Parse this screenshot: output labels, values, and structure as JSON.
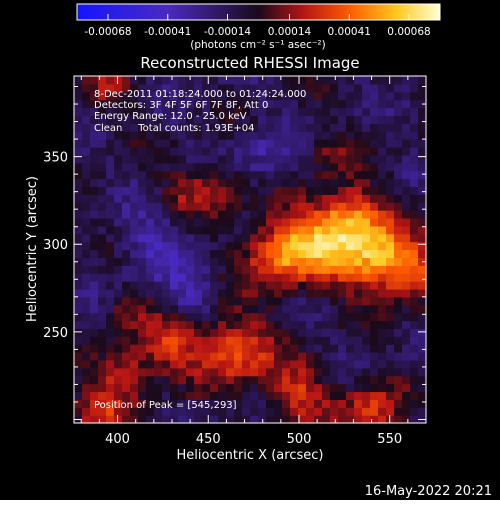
{
  "chart_data": {
    "type": "heatmap",
    "title": "Reconstructed RHESSI Image",
    "xlabel": "Heliocentric X (arcsec)",
    "ylabel": "Heliocentric Y (arcsec)",
    "xlim": [
      376,
      570
    ],
    "ylim": [
      198,
      396
    ],
    "x_ticks": [
      400,
      450,
      500,
      550
    ],
    "y_ticks": [
      250,
      300,
      350
    ],
    "colorbar": {
      "range": [
        -0.00082,
        0.00082
      ],
      "ticks": [
        "-0.00068",
        "-0.00041",
        "-0.00014",
        "0.00014",
        "0.00041",
        "0.00068"
      ],
      "unit_label": "(photons cm⁻² s⁻¹ asec⁻²)"
    },
    "annotations": [
      "8-Dec-2011 01:18:24.000 to 01:24:24.000",
      "Detectors: 3F 4F 5F 6F 7F 8F, Att 0",
      "Energy Range: 12.0 - 25.0 keV",
      "Clean     Total counts: 1.93E+04"
    ],
    "peak_label": "Position of Peak = [545,293]",
    "footer_timestamp": "16-May-2022 20:21",
    "features": [
      {
        "x": 545,
        "y": 293,
        "sigma": 14,
        "amp": 0.00068,
        "note": "peak"
      },
      {
        "x": 513,
        "y": 302,
        "sigma": 16,
        "amp": 0.00062
      },
      {
        "x": 487,
        "y": 294,
        "sigma": 13,
        "amp": 0.00048
      },
      {
        "x": 530,
        "y": 318,
        "sigma": 11,
        "amp": 0.0004
      },
      {
        "x": 565,
        "y": 283,
        "sigma": 10,
        "amp": 0.00036
      },
      {
        "x": 465,
        "y": 240,
        "sigma": 14,
        "amp": 0.00052
      },
      {
        "x": 430,
        "y": 243,
        "sigma": 11,
        "amp": 0.00038
      },
      {
        "x": 405,
        "y": 228,
        "sigma": 11,
        "amp": 0.00036
      },
      {
        "x": 500,
        "y": 215,
        "sigma": 12,
        "amp": 0.00038
      },
      {
        "x": 540,
        "y": 205,
        "sigma": 12,
        "amp": 0.0004
      },
      {
        "x": 390,
        "y": 205,
        "sigma": 11,
        "amp": 0.00032
      },
      {
        "x": 455,
        "y": 333,
        "sigma": 10,
        "amp": 0.00036
      },
      {
        "x": 435,
        "y": 330,
        "sigma": 8,
        "amp": 0.00022
      },
      {
        "x": 518,
        "y": 352,
        "sigma": 8,
        "amp": 0.00022
      },
      {
        "x": 395,
        "y": 390,
        "sigma": 9,
        "amp": 0.00024
      },
      {
        "x": 405,
        "y": 262,
        "sigma": 8,
        "amp": 0.00022
      },
      {
        "x": 440,
        "y": 270,
        "sigma": 10,
        "amp": -0.0002
      },
      {
        "x": 420,
        "y": 300,
        "sigma": 14,
        "amp": -0.00022
      },
      {
        "x": 480,
        "y": 350,
        "sigma": 12,
        "amp": -0.00018
      }
    ]
  }
}
